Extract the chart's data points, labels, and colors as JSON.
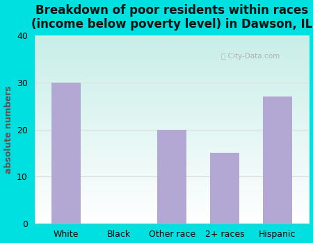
{
  "title": "Breakdown of poor residents within races\n(income below poverty level) in Dawson, IL",
  "categories": [
    "White",
    "Black",
    "Other race",
    "2+ races",
    "Hispanic"
  ],
  "values": [
    30,
    0,
    20,
    15,
    27
  ],
  "bar_color": "#b3a8d4",
  "ylabel": "absolute numbers",
  "ylim": [
    0,
    40
  ],
  "yticks": [
    0,
    10,
    20,
    30,
    40
  ],
  "background_outer": "#00e0e0",
  "bg_top": "#c8eee8",
  "bg_bottom": "#ffffff",
  "grid_color": "#dddddd",
  "title_fontsize": 12,
  "label_fontsize": 9,
  "tick_fontsize": 9
}
